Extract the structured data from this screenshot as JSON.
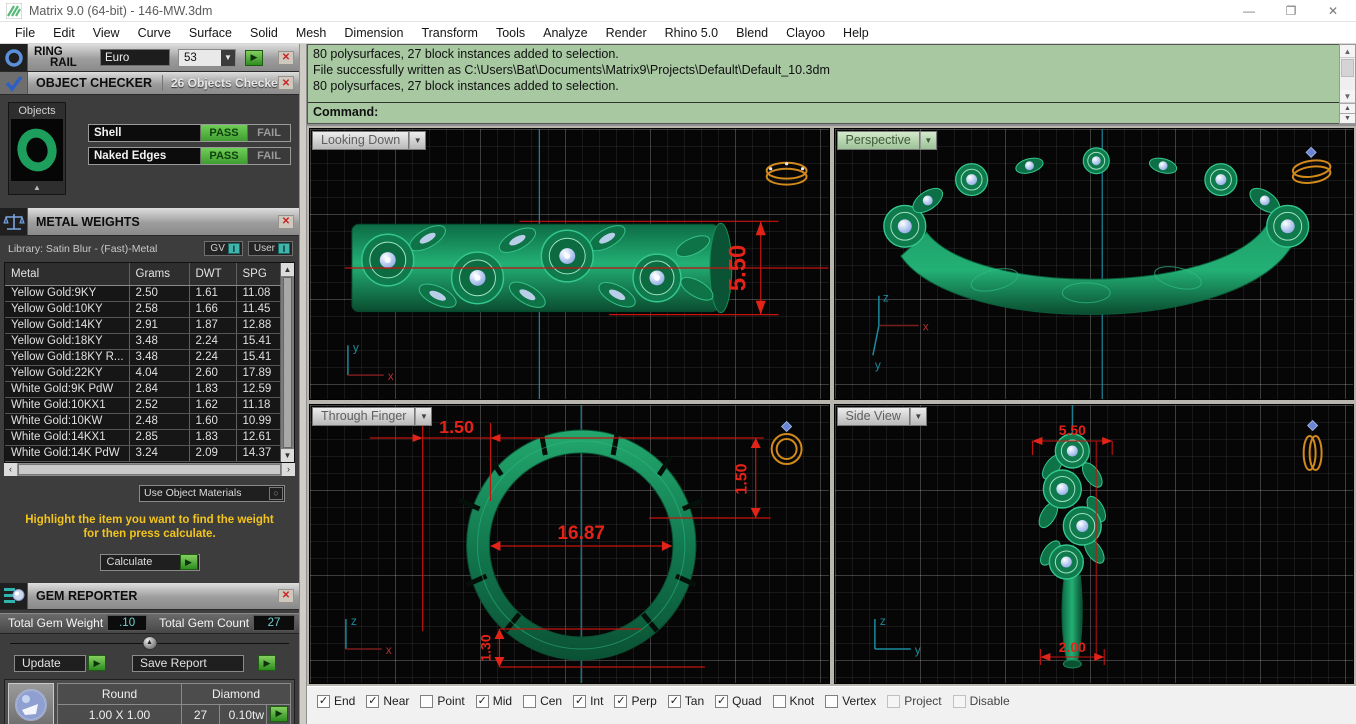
{
  "window": {
    "title": "Matrix 9.0 (64-bit) - 146-MW.3dm"
  },
  "menu": {
    "items": [
      "File",
      "Edit",
      "View",
      "Curve",
      "Surface",
      "Solid",
      "Mesh",
      "Dimension",
      "Transform",
      "Tools",
      "Analyze",
      "Render",
      "Rhino 5.0",
      "Blend",
      "Clayoo",
      "Help"
    ]
  },
  "ring_rail": {
    "title_top": "RING",
    "title_bottom": "RAIL",
    "style_value": "Euro",
    "size_value": "53"
  },
  "object_checker": {
    "title": "OBJECT CHECKER",
    "status": "26  Objects Checked",
    "objects_label": "Objects",
    "pass_label": "PASS",
    "fail_label": "FAIL",
    "checks": [
      {
        "label": "Shell"
      },
      {
        "label": "Naked Edges"
      }
    ]
  },
  "metal_weights": {
    "title": "METAL WEIGHTS",
    "library_label": "Library: Satin Blur - (Fast)-Metal",
    "gv_label": "GV",
    "user_label": "User",
    "toggle_value": "I",
    "columns": [
      "Metal",
      "Grams",
      "DWT",
      "SPG"
    ],
    "rows": [
      [
        "Yellow Gold:9KY",
        "2.50",
        "1.61",
        "11.08"
      ],
      [
        "Yellow Gold:10KY",
        "2.58",
        "1.66",
        "11.45"
      ],
      [
        "Yellow Gold:14KY",
        "2.91",
        "1.87",
        "12.88"
      ],
      [
        "Yellow Gold:18KY",
        "3.48",
        "2.24",
        "15.41"
      ],
      [
        "Yellow Gold:18KY R...",
        "3.48",
        "2.24",
        "15.41"
      ],
      [
        "Yellow Gold:22KY",
        "4.04",
        "2.60",
        "17.89"
      ],
      [
        "White Gold:9K PdW",
        "2.84",
        "1.83",
        "12.59"
      ],
      [
        "White Gold:10KX1",
        "2.52",
        "1.62",
        "11.18"
      ],
      [
        "White Gold:10KW",
        "2.48",
        "1.60",
        "10.99"
      ],
      [
        "White Gold:14KX1",
        "2.85",
        "1.83",
        "12.61"
      ],
      [
        "White Gold:14K PdW",
        "3.24",
        "2.09",
        "14.37"
      ]
    ],
    "materials_dropdown": "Use Object Materials",
    "hint_line1": "Highlight the item you want to find the weight",
    "hint_line2": "for then press calculate.",
    "calculate_label": "Calculate"
  },
  "gem_reporter": {
    "title": "GEM REPORTER",
    "total_weight_label": "Total Gem Weight",
    "total_weight_value": ".10",
    "total_count_label": "Total Gem Count",
    "total_count_value": "27",
    "update_label": "Update",
    "save_report_label": "Save Report",
    "gem_row": {
      "shape": "Round",
      "type": "Diamond",
      "size": "1.00 X 1.00",
      "count": "27",
      "weight": "0.10tw"
    }
  },
  "command": {
    "history": [
      "80 polysurfaces, 27 block instances added to selection.",
      "File successfully written as C:\\Users\\Bat\\Documents\\Matrix9\\Projects\\Default\\Default_10.3dm",
      "80 polysurfaces, 27 block instances added to selection."
    ],
    "prompt": "Command:"
  },
  "viewports": {
    "looking_down": {
      "label": "Looking Down",
      "dim_height": "5.50",
      "axis_h": "x",
      "axis_v": "y"
    },
    "perspective": {
      "label": "Perspective",
      "axis_h": "x",
      "axis_v": "z",
      "axis_d": "y"
    },
    "through_finger": {
      "label": "Through Finger",
      "dim_top": "1.50",
      "dim_right": "1.50",
      "dim_diameter": "16.87",
      "dim_bottom": "1.30",
      "axis_h": "x",
      "axis_v": "z"
    },
    "side_view": {
      "label": "Side View",
      "dim_top": "5.50",
      "dim_bottom": "2.00",
      "axis_h": "y",
      "axis_v": "z"
    }
  },
  "osnap": {
    "items": [
      {
        "label": "End",
        "checked": true,
        "disabled": false
      },
      {
        "label": "Near",
        "checked": true,
        "disabled": false
      },
      {
        "label": "Point",
        "checked": false,
        "disabled": false
      },
      {
        "label": "Mid",
        "checked": true,
        "disabled": false
      },
      {
        "label": "Cen",
        "checked": false,
        "disabled": false
      },
      {
        "label": "Int",
        "checked": true,
        "disabled": false
      },
      {
        "label": "Perp",
        "checked": true,
        "disabled": false
      },
      {
        "label": "Tan",
        "checked": true,
        "disabled": false
      },
      {
        "label": "Quad",
        "checked": true,
        "disabled": false
      },
      {
        "label": "Knot",
        "checked": false,
        "disabled": false
      },
      {
        "label": "Vertex",
        "checked": false,
        "disabled": false
      },
      {
        "label": "Project",
        "checked": false,
        "disabled": true
      },
      {
        "label": "Disable",
        "checked": false,
        "disabled": true
      }
    ]
  },
  "colors": {
    "command_bg": "#a7c8a1",
    "dimension_red": "#e42318",
    "model_green": "#0f7a4b",
    "gem_blue": "#b9cdf2",
    "gizmo_orange": "#d28a1c",
    "pass_green": "#4db848",
    "value_teal": "#6fd0ce",
    "hint_yellow": "#f2c41d",
    "axis_cyan": "#1a8a9e"
  }
}
